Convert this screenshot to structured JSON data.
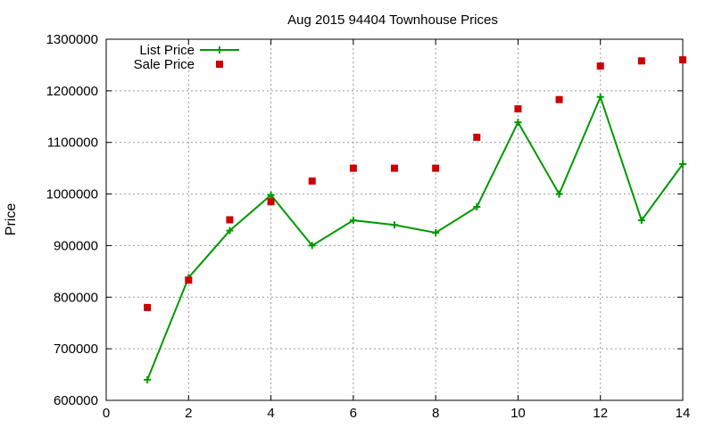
{
  "chart_data": {
    "type": "line",
    "title": "Aug 2015 94404 Townhouse Prices",
    "xlabel": "",
    "ylabel": "Price",
    "xlim": [
      0,
      14
    ],
    "ylim": [
      600000,
      1300000
    ],
    "x_ticks": [
      "0",
      "2",
      "4",
      "6",
      "8",
      "10",
      "12",
      "14"
    ],
    "y_ticks": [
      "600000",
      "700000",
      "800000",
      "900000",
      "1000000",
      "1100000",
      "1200000",
      "1300000"
    ],
    "grid": true,
    "legend_position": "top-left",
    "series": [
      {
        "name": "List Price",
        "style": "line-with-plus-markers",
        "color": "#009900",
        "x": [
          1,
          2,
          3,
          4,
          5,
          6,
          7,
          8,
          9,
          10,
          11,
          12,
          13,
          14
        ],
        "y": [
          640000,
          838000,
          929000,
          998000,
          900000,
          949000,
          940000,
          925000,
          975000,
          1139000,
          1000000,
          1188000,
          949000,
          1058000
        ]
      },
      {
        "name": "Sale Price",
        "style": "square-points",
        "color": "#cc0000",
        "x": [
          1,
          2,
          3,
          4,
          5,
          6,
          7,
          8,
          9,
          10,
          11,
          12,
          13,
          14
        ],
        "y": [
          780000,
          833000,
          950000,
          985000,
          1025000,
          1050000,
          1050000,
          1050000,
          1110000,
          1165000,
          1183000,
          1248000,
          1258000,
          1260000
        ]
      }
    ]
  }
}
